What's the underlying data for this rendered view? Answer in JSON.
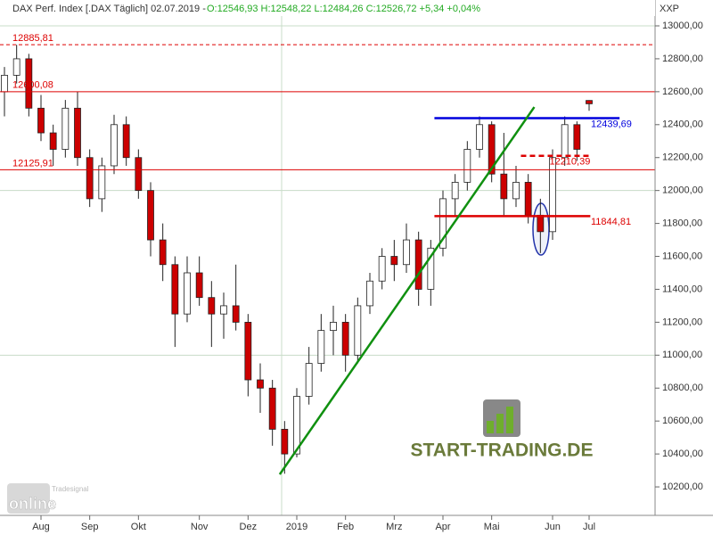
{
  "chart_data": {
    "type": "candlestick",
    "title": "DAX Perf. Index [.DAX  Täglich] 02.07.2019 -",
    "quote_text": "O:12546,93 H:12548,22 L:12484,26 C:12526,72 +5,34 +0,04%",
    "axis_code": "XXP",
    "watermark": "START-TRADING.DE",
    "logo_top": "Tradesignal",
    "logo_bottom": "online",
    "categories": [
      null,
      null,
      null,
      "Aug",
      null,
      null,
      null,
      "Sep",
      null,
      null,
      null,
      "Okt",
      null,
      null,
      null,
      null,
      "Nov",
      null,
      null,
      null,
      "Dez",
      null,
      null,
      null,
      "2019",
      null,
      null,
      null,
      "Feb",
      null,
      null,
      null,
      "Mrz",
      null,
      null,
      null,
      "Apr",
      null,
      null,
      null,
      "Mai",
      null,
      null,
      null,
      null,
      "Jun",
      null,
      null,
      "Jul"
    ],
    "open": [
      12600,
      12700,
      12800,
      12500,
      12350,
      12250,
      12500,
      12200,
      11950,
      12150,
      12400,
      12200,
      12000,
      11700,
      11550,
      11250,
      11500,
      11350,
      11250,
      11300,
      11200,
      10850,
      10800,
      10550,
      10400,
      10750,
      10950,
      11150,
      11200,
      11000,
      11300,
      11450,
      11600,
      11550,
      11700,
      11400,
      11650,
      11950,
      12050,
      12250,
      12400,
      12100,
      11950,
      12050,
      11850,
      11750,
      12200,
      12400,
      12546.93
    ],
    "high": [
      12750,
      12885,
      12830,
      12580,
      12400,
      12550,
      12600,
      12250,
      12200,
      12460,
      12450,
      12250,
      12050,
      11800,
      11600,
      11600,
      11600,
      11450,
      11380,
      11550,
      11250,
      10950,
      10850,
      10600,
      10800,
      11050,
      11250,
      11300,
      11250,
      11350,
      11500,
      11650,
      11700,
      11800,
      11750,
      11700,
      12000,
      12100,
      12300,
      12450,
      12420,
      12350,
      12150,
      12100,
      11950,
      12250,
      12450,
      12420,
      12548.22
    ],
    "low": [
      12450,
      12650,
      12450,
      12300,
      12150,
      12200,
      12150,
      11900,
      11870,
      12100,
      12150,
      11950,
      11600,
      11450,
      11050,
      11200,
      11300,
      11050,
      11100,
      11150,
      10750,
      10650,
      10450,
      10280,
      10380,
      10700,
      10900,
      11000,
      10900,
      10950,
      11250,
      11400,
      11450,
      11500,
      11300,
      11300,
      11600,
      11850,
      12000,
      12200,
      12050,
      11850,
      11900,
      11800,
      11620,
      11700,
      12150,
      12180,
      12484.26
    ],
    "close": [
      12700,
      12800,
      12500,
      12350,
      12250,
      12500,
      12200,
      11950,
      12150,
      12400,
      12200,
      12000,
      11700,
      11550,
      11250,
      11500,
      11350,
      11250,
      11300,
      11200,
      10850,
      10800,
      10550,
      10400,
      10750,
      10950,
      11150,
      11200,
      11000,
      11300,
      11450,
      11600,
      11550,
      11700,
      11400,
      11650,
      11950,
      12050,
      12250,
      12400,
      12100,
      11950,
      12050,
      11850,
      11750,
      12200,
      12400,
      12250,
      12526.72
    ],
    "up_color": "#ffffff",
    "down_color": "#cc0000",
    "ylim": [
      10027,
      13157
    ],
    "yticks": [
      {
        "value": 13000,
        "label": "13000,00"
      },
      {
        "value": 12800,
        "label": "12800,00"
      },
      {
        "value": 12600,
        "label": "12600,00"
      },
      {
        "value": 12400,
        "label": "12400,00"
      },
      {
        "value": 12200,
        "label": "12200,00"
      },
      {
        "value": 12000,
        "label": "12000,00"
      },
      {
        "value": 11800,
        "label": "11800,00"
      },
      {
        "value": 11600,
        "label": "11600,00"
      },
      {
        "value": 11400,
        "label": "11400,00"
      },
      {
        "value": 11200,
        "label": "11200,00"
      },
      {
        "value": 11000,
        "label": "11000,00"
      },
      {
        "value": 10800,
        "label": "10800,00"
      },
      {
        "value": 10600,
        "label": "10600,00"
      },
      {
        "value": 10400,
        "label": "10400,00"
      },
      {
        "value": 10200,
        "label": "10200,00"
      }
    ],
    "grid_levels": [
      13000,
      12000,
      11000
    ],
    "levels": [
      {
        "value": 12885.81,
        "label": "12885,81",
        "color": "#dd0000",
        "dashed": true
      },
      {
        "value": 12600.08,
        "label": "12600,08",
        "color": "#dd0000",
        "dashed": false
      },
      {
        "value": 12125.91,
        "label": "12125,91",
        "color": "#dd0000",
        "dashed": false
      },
      {
        "value": 12439.69,
        "label": "12439,69",
        "color": "#0000dd",
        "dashed": false,
        "from": 35.3,
        "to": 50.5
      },
      {
        "value": 11844.81,
        "label": "11844,81",
        "color": "#dd0000",
        "dashed": false,
        "from": 35.3,
        "to": 48.1
      },
      {
        "value": 12210.39,
        "label": "12210,39",
        "color": "#dd0000",
        "dashed": true,
        "from": 42.4,
        "to": 48.1
      }
    ],
    "trendline": {
      "color": "#109010",
      "from": [
        22.6,
        10276
      ],
      "to": [
        43.5,
        12507
      ]
    }
  }
}
